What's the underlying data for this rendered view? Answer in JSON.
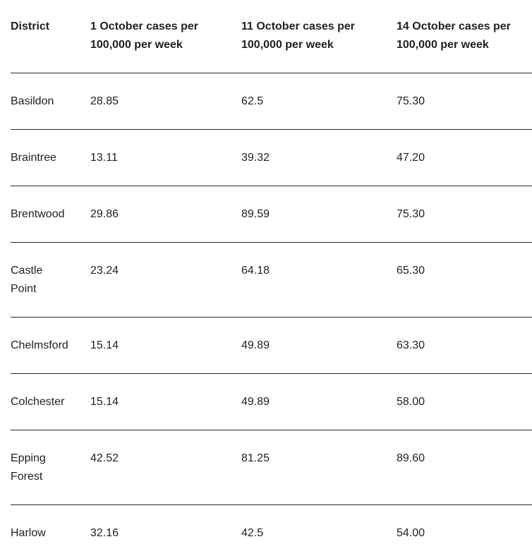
{
  "table": {
    "headers": [
      "District",
      "1 October cases per 100,000 per week",
      "11 October cases per 100,000 per week",
      "14 October cases per 100,000 per week"
    ],
    "rows": [
      [
        "Basildon",
        "28.85",
        "62.5",
        "75.30"
      ],
      [
        "Braintree",
        "13.11",
        "39.32",
        "47.20"
      ],
      [
        "Brentwood",
        "29.86",
        "89.59",
        "75.30"
      ],
      [
        "Castle Point",
        "23.24",
        "64.18",
        "65.30"
      ],
      [
        "Chelmsford",
        "15.14",
        "49.89",
        "63.30"
      ],
      [
        "Colchester",
        "15.14",
        "49.89",
        "58.00"
      ],
      [
        "Epping Forest",
        "42.52",
        "81.25",
        "89.60"
      ],
      [
        "Harlow",
        "32.16",
        "42.5",
        "54.00"
      ]
    ]
  }
}
